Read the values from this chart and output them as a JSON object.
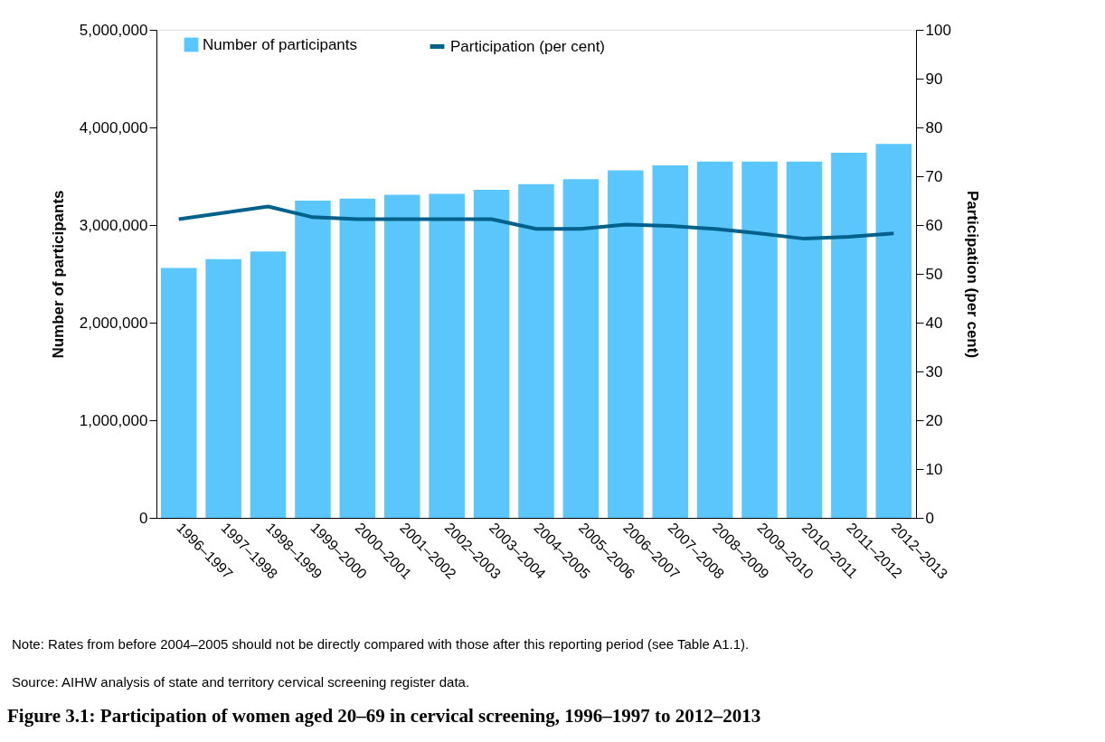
{
  "chart_data": {
    "type": "bar",
    "title": "Figure 3.1: Participation of women aged 20–69 in cervical screening, 1996–1997 to 2012–2013",
    "ylabel": "Number of participants",
    "y2label": "Participation (per cent)",
    "categories": [
      "1996–1997",
      "1997–1998",
      "1998–1999",
      "1999–2000",
      "2000–2001",
      "2001–2002",
      "2002–2003",
      "2003–2004",
      "2004–2005",
      "2005–2006",
      "2006–2007",
      "2007–2008",
      "2008–2009",
      "2009–2010",
      "2010–2011",
      "2011–2012",
      "2012–2013"
    ],
    "series": [
      {
        "name": "Number of participants",
        "color": "#5bc6fb",
        "values": [
          2560000,
          2650000,
          2730000,
          3250000,
          3270000,
          3310000,
          3320000,
          3360000,
          3420000,
          3470000,
          3560000,
          3610000,
          3650000,
          3650000,
          3650000,
          3740000,
          3830000
        ]
      },
      {
        "name": "Participation (per cent)",
        "type": "line",
        "axis": "y2",
        "color": "#00628b",
        "values": [
          61.2,
          62.5,
          63.8,
          61.6,
          61.2,
          61.2,
          61.2,
          61.2,
          59.2,
          59.2,
          60.1,
          59.8,
          59.2,
          58.3,
          57.2,
          57.6,
          58.3
        ]
      }
    ],
    "ylim": [
      0,
      5000000
    ],
    "yticks": [
      {
        "value": 0,
        "label": "0"
      },
      {
        "value": 1000000,
        "label": "1,000,000"
      },
      {
        "value": 2000000,
        "label": "2,000,000"
      },
      {
        "value": 3000000,
        "label": "3,000,000"
      },
      {
        "value": 4000000,
        "label": "4,000,000"
      },
      {
        "value": 5000000,
        "label": "5,000,000"
      }
    ],
    "y2lim": [
      0,
      100
    ],
    "y2ticks": [
      0,
      10,
      20,
      30,
      40,
      50,
      60,
      70,
      80,
      90,
      100
    ],
    "legend": "top left",
    "grid": false,
    "marker": "none",
    "line_style": "solid",
    "annotations": [
      "Note: Rates from before 2004–2005 should not be directly compared with those after this reporting period (see Table A1.1).",
      "Source: AIHW analysis of state and territory cervical screening register data."
    ]
  }
}
